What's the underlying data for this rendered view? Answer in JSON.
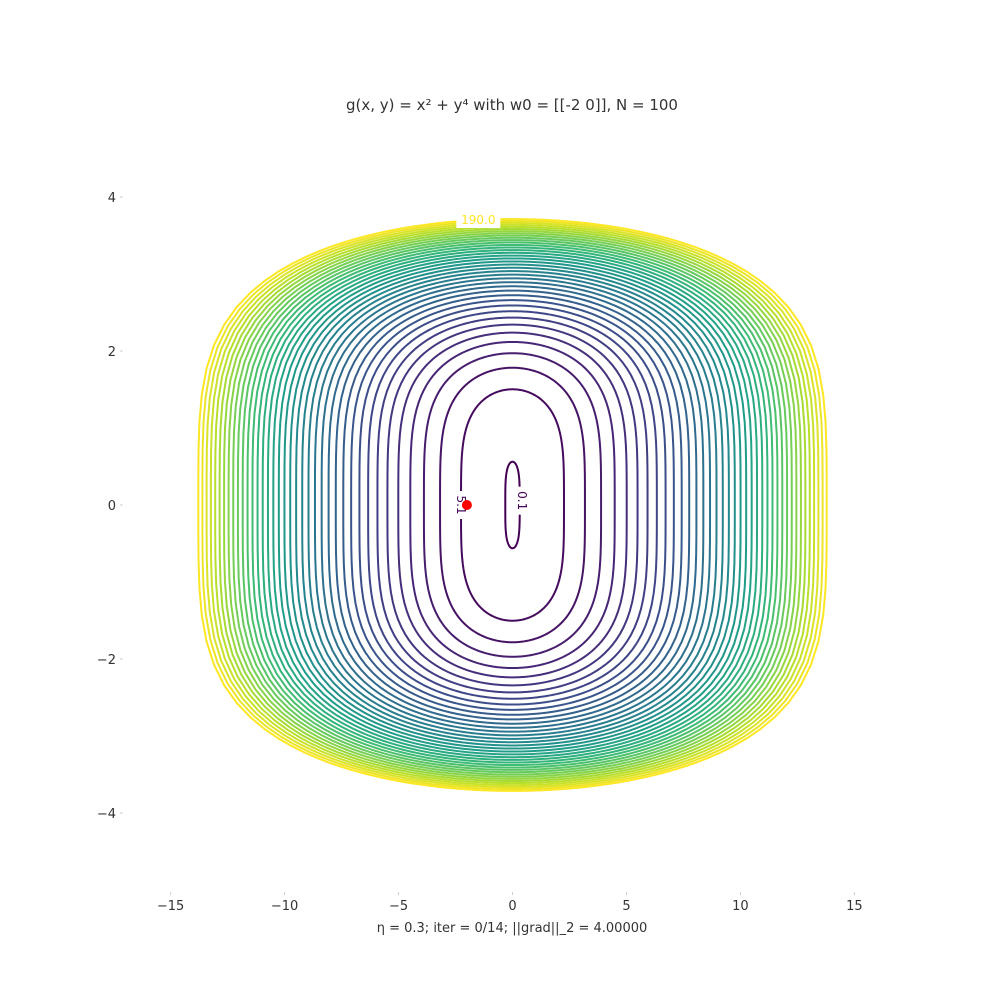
{
  "chart_data": {
    "type": "contour",
    "title": "g(x, y) = x² + y⁴ with w0 = [[-2  0]], N = 100",
    "xlabel": "η = 0.3; iter = 0/14; ||grad||_2 = 4.00000",
    "ylabel": "",
    "xlim": [
      -17,
      17
    ],
    "ylim": [
      -5,
      5
    ],
    "xticks": [
      -15,
      -10,
      -5,
      0,
      5,
      10,
      15
    ],
    "xtick_labels": [
      "−15",
      "−10",
      "−5",
      "0",
      "5",
      "10",
      "15"
    ],
    "yticks": [
      4,
      2,
      0,
      -2,
      -4
    ],
    "ytick_labels": [
      "4",
      "2",
      "0",
      "−2",
      "−4"
    ],
    "function": "x^2 + y^4",
    "levels": [
      0.1,
      5.1,
      10.1,
      15.1,
      20.1,
      25.1,
      30.1,
      35.1,
      40.1,
      45.1,
      50.1,
      55.1,
      60.1,
      65.1,
      70.1,
      75.1,
      80.1,
      85.1,
      90.1,
      95.1,
      100.1,
      105.1,
      110.1,
      115.1,
      120.1,
      125.1,
      130.1,
      135.1,
      140.1,
      145.1,
      150.1,
      155.1,
      160.1,
      165.1,
      170.1,
      175.1,
      180.1,
      185.1,
      190.0
    ],
    "level_labels": [
      {
        "value": 0.1,
        "text": "0.1"
      },
      {
        "value": 5.1,
        "text": "5.1"
      },
      {
        "value": 190.0,
        "text": "190.0"
      }
    ],
    "colormap": "viridis",
    "point": {
      "x": -2,
      "y": 0,
      "color": "#ff0000"
    },
    "grid": false
  }
}
